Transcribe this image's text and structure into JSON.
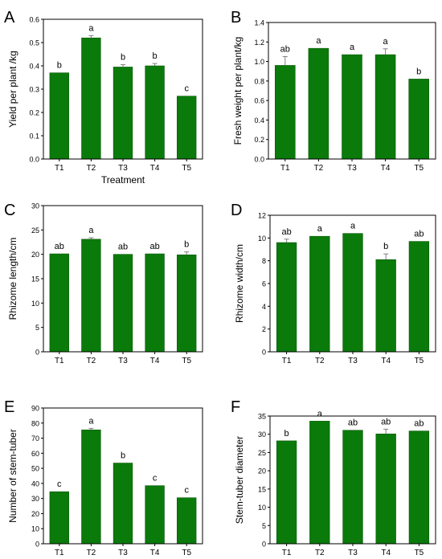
{
  "colors": {
    "bar_fill": "#0a7a0a",
    "bar_edge": "#0a5a0a",
    "axis": "#000000",
    "error": "#7f7f7f"
  },
  "chart_data": [
    {
      "panel_label": "A",
      "type": "bar",
      "categories": [
        "T1",
        "T2",
        "T3",
        "T4",
        "T5"
      ],
      "values": [
        0.37,
        0.52,
        0.395,
        0.4,
        0.27
      ],
      "errors": [
        0.0,
        0.01,
        0.01,
        0.01,
        0.0
      ],
      "significance": [
        "b",
        "a",
        "b",
        "b",
        "c"
      ],
      "xlabel": "Treatment",
      "ylabel": "Yield per plant /kg",
      "ylim": [
        0,
        0.6
      ],
      "yticks": [
        "0.0",
        "0.1",
        "0.2",
        "0.3",
        "0.4",
        "0.5",
        "0.6"
      ]
    },
    {
      "panel_label": "B",
      "type": "bar",
      "categories": [
        "T1",
        "T2",
        "T3",
        "T4",
        "T5"
      ],
      "values": [
        0.96,
        1.135,
        1.07,
        1.07,
        0.82
      ],
      "errors": [
        0.09,
        0.0,
        0.0,
        0.06,
        0.0
      ],
      "significance": [
        "ab",
        "a",
        "a",
        "a",
        "b"
      ],
      "xlabel": "",
      "ylabel": "Fresh weight per plant/kg",
      "ylim": [
        0,
        1.4
      ],
      "yticks": [
        "0.0",
        "0.2",
        "0.4",
        "0.6",
        "0.8",
        "1.0",
        "1.2",
        "1.4"
      ]
    },
    {
      "panel_label": "C",
      "type": "bar",
      "categories": [
        "T1",
        "T2",
        "T3",
        "T4",
        "T5"
      ],
      "values": [
        20.1,
        23.1,
        20.0,
        20.1,
        19.9
      ],
      "errors": [
        0.0,
        0.3,
        0.0,
        0.0,
        0.6
      ],
      "significance": [
        "ab",
        "a",
        "ab",
        "ab",
        "b"
      ],
      "xlabel": "",
      "ylabel": "Rhizome length/cm",
      "ylim": [
        0,
        30
      ],
      "yticks": [
        "0",
        "5",
        "10",
        "15",
        "20",
        "25",
        "30"
      ]
    },
    {
      "panel_label": "D",
      "type": "bar",
      "categories": [
        "T1",
        "T2",
        "T3",
        "T4",
        "T5"
      ],
      "values": [
        9.6,
        10.15,
        10.4,
        8.1,
        9.7
      ],
      "errors": [
        0.3,
        0.0,
        0.0,
        0.5,
        0.0
      ],
      "significance": [
        "ab",
        "a",
        "a",
        "b",
        "ab"
      ],
      "xlabel": "",
      "ylabel": "Rhizome width/cm",
      "ylim": [
        0,
        12
      ],
      "yticks": [
        "0",
        "2",
        "4",
        "6",
        "8",
        "10",
        "12"
      ]
    },
    {
      "panel_label": "E",
      "type": "bar",
      "categories": [
        "T1",
        "T2",
        "T3",
        "T4",
        "T5"
      ],
      "values": [
        34.5,
        75.5,
        53.5,
        38.5,
        30.5
      ],
      "errors": [
        0.0,
        1.0,
        0.0,
        0.0,
        0.0
      ],
      "significance": [
        "c",
        "a",
        "b",
        "c",
        "c"
      ],
      "xlabel": "",
      "ylabel": "Number of stem-tuber",
      "ylim": [
        0,
        90
      ],
      "yticks": [
        "0",
        "10",
        "20",
        "30",
        "40",
        "50",
        "60",
        "70",
        "80",
        "90"
      ]
    },
    {
      "panel_label": "F",
      "type": "bar",
      "categories": [
        "T1",
        "T2",
        "T3",
        "T4",
        "T5"
      ],
      "values": [
        28.2,
        33.6,
        31.1,
        30.1,
        30.9
      ],
      "errors": [
        0.0,
        0.0,
        0.0,
        1.3,
        0.0
      ],
      "significance": [
        "b",
        "a",
        "ab",
        "ab",
        "ab"
      ],
      "xlabel": "",
      "ylabel": "Stem-tuber diameter",
      "ylim": [
        0,
        35
      ],
      "yticks": [
        "0",
        "5",
        "10",
        "15",
        "20",
        "25",
        "30",
        "35"
      ]
    }
  ]
}
